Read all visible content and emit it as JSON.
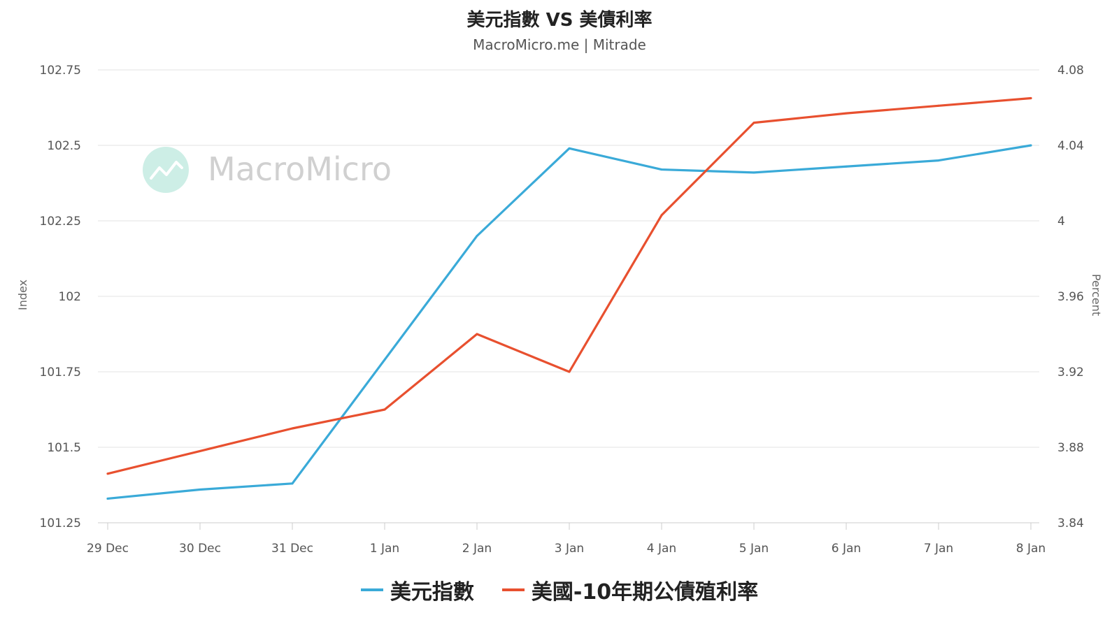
{
  "chart_data": {
    "type": "line",
    "title": "美元指數 VS 美債利率",
    "subtitle": "MacroMicro.me | Mitrade",
    "watermark": "MacroMicro",
    "categories": [
      "29 Dec",
      "30 Dec",
      "31 Dec",
      "1 Jan",
      "2 Jan",
      "3 Jan",
      "4 Jan",
      "5 Jan",
      "6 Jan",
      "7 Jan",
      "8 Jan"
    ],
    "y_left": {
      "label": "Index",
      "ylim": [
        101.25,
        102.75
      ],
      "ticks": [
        "101.25",
        "101.5",
        "101.75",
        "102",
        "102.25",
        "102.5",
        "102.75"
      ]
    },
    "y_right": {
      "label": "Percent",
      "ylim": [
        3.84,
        4.08
      ],
      "ticks": [
        "3.84",
        "3.88",
        "3.92",
        "3.96",
        "4",
        "4.04",
        "4.08"
      ]
    },
    "series": [
      {
        "name": "美元指數",
        "axis": "left",
        "color": "#3aaad8",
        "values": [
          101.33,
          101.36,
          101.38,
          101.79,
          102.2,
          102.49,
          102.42,
          102.41,
          102.43,
          102.45,
          102.5
        ]
      },
      {
        "name": "美國-10年期公債殖利率",
        "axis": "right",
        "color": "#e8502f",
        "values": [
          3.866,
          3.878,
          3.89,
          3.9,
          3.94,
          3.92,
          4.003,
          4.052,
          4.057,
          4.061,
          4.065
        ]
      }
    ],
    "grid": true,
    "legend_position": "bottom-center"
  }
}
